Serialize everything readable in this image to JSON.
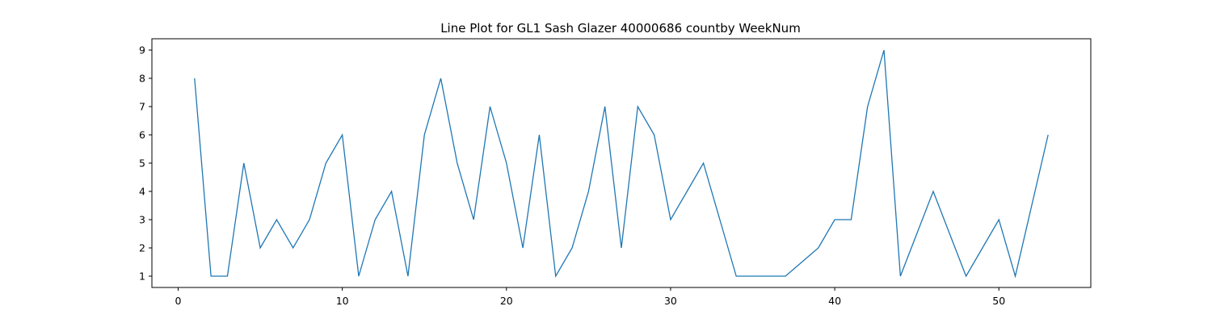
{
  "chart_data": {
    "type": "line",
    "title": "Line Plot for GL1 Sash Glazer 40000686 countby WeekNum",
    "xlabel": "",
    "ylabel": "",
    "xlim": [
      -1.6,
      55.6
    ],
    "ylim": [
      0.6,
      9.4
    ],
    "xticks": [
      0,
      10,
      20,
      30,
      40,
      50
    ],
    "yticks": [
      1,
      2,
      3,
      4,
      5,
      6,
      7,
      8,
      9
    ],
    "grid": false,
    "legend": "none",
    "line_color": "#1f77b4",
    "series": [
      {
        "x": [
          1,
          2,
          3,
          4,
          5,
          6,
          7,
          8,
          9,
          10,
          11,
          12,
          13,
          14,
          15,
          16,
          17,
          18,
          19,
          20,
          21,
          22,
          23,
          24,
          25,
          26,
          27,
          28,
          29,
          30,
          31,
          32,
          33,
          34,
          35,
          36,
          37,
          38,
          39,
          40,
          41,
          42,
          43,
          44,
          45,
          46,
          47,
          48,
          49,
          50,
          51,
          52,
          53
        ],
        "values": [
          8,
          1,
          1,
          5,
          2,
          3,
          2,
          3,
          5,
          6,
          1,
          3,
          4,
          1,
          6,
          8,
          5,
          3,
          7,
          5,
          2,
          6,
          1,
          2,
          4,
          7,
          2,
          7,
          6,
          3,
          4,
          5,
          3,
          1,
          1,
          1,
          1,
          1.5,
          2,
          3,
          3,
          7,
          9,
          1,
          2.5,
          4,
          2.5,
          1,
          2,
          3,
          1,
          3.5,
          6
        ]
      }
    ]
  }
}
